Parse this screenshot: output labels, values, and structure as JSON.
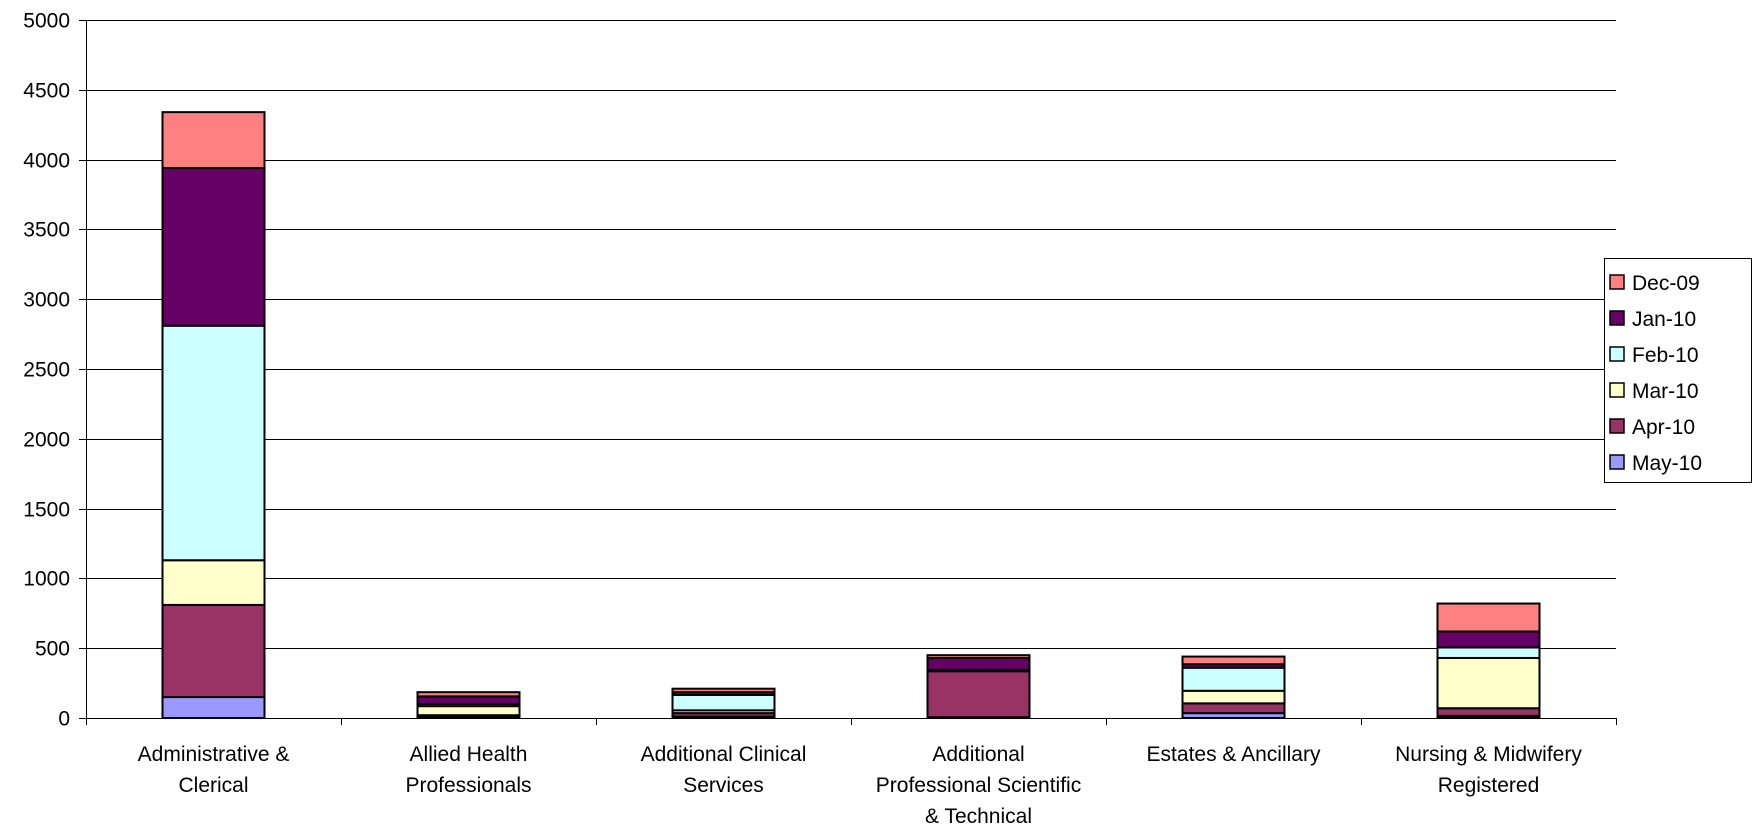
{
  "chart_data": {
    "type": "bar",
    "stacked": true,
    "categories": [
      "Administrative & Clerical",
      "Allied Health Professionals",
      "Additional Clinical Services",
      "Additional Professional Scientific & Technical",
      "Estates & Ancillary",
      "Nursing & Midwifery Registered"
    ],
    "category_label_lines": [
      [
        "Administrative &",
        "Clerical"
      ],
      [
        "Allied Health",
        "Professionals"
      ],
      [
        "Additional Clinical",
        "Services"
      ],
      [
        "Additional",
        "Professional Scientific",
        "& Technical"
      ],
      [
        "Estates & Ancillary"
      ],
      [
        "Nursing & Midwifery",
        "Registered"
      ]
    ],
    "series": [
      {
        "name": "May-10",
        "color": "#9999FF",
        "values": [
          150,
          5,
          10,
          5,
          35,
          15
        ]
      },
      {
        "name": "Apr-10",
        "color": "#993366",
        "values": [
          660,
          15,
          25,
          330,
          70,
          55
        ]
      },
      {
        "name": "Mar-10",
        "color": "#FFFFCC",
        "values": [
          320,
          65,
          20,
          5,
          90,
          360
        ]
      },
      {
        "name": "Feb-10",
        "color": "#CCFFFF",
        "values": [
          1680,
          15,
          110,
          5,
          165,
          75
        ]
      },
      {
        "name": "Jan-10",
        "color": "#660066",
        "values": [
          1130,
          55,
          20,
          85,
          25,
          115
        ]
      },
      {
        "name": "Dec-09",
        "color": "#FF8080",
        "values": [
          400,
          30,
          25,
          20,
          55,
          200
        ]
      }
    ],
    "legend_order": [
      "Dec-09",
      "Jan-10",
      "Feb-10",
      "Mar-10",
      "Apr-10",
      "May-10"
    ],
    "ylim": [
      0,
      5000
    ],
    "yticks": [
      0,
      500,
      1000,
      1500,
      2000,
      2500,
      3000,
      3500,
      4000,
      4500,
      5000
    ],
    "title": "",
    "xlabel": "",
    "ylabel": "",
    "grid": true,
    "legend_position": "right"
  }
}
